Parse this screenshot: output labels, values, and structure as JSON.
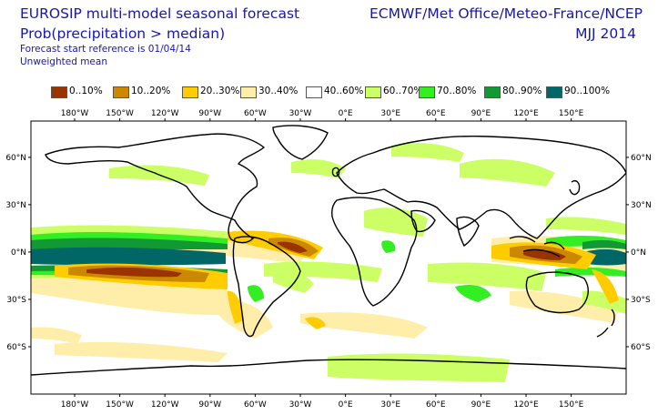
{
  "header": {
    "title": "EUROSIP multi-model seasonal forecast",
    "subtitle": "Prob(precipitation > median)",
    "start_reference": "Forecast start reference is 01/04/14",
    "weighting": "Unweighted mean",
    "centres": "ECMWF/Met Office/Meteo-France/NCEP",
    "season": "MJJ 2014"
  },
  "legend": [
    {
      "label": "0..10%",
      "color": "#993300"
    },
    {
      "label": "10..20%",
      "color": "#cc8800"
    },
    {
      "label": "20..30%",
      "color": "#ffcc00"
    },
    {
      "label": "30..40%",
      "color": "#ffeeaa"
    },
    {
      "label": "40..60%",
      "color": "#ffffff"
    },
    {
      "label": "60..70%",
      "color": "#ccff66"
    },
    {
      "label": "70..80%",
      "color": "#33ee22"
    },
    {
      "label": "80..90%",
      "color": "#119933"
    },
    {
      "label": "90..100%",
      "color": "#006666"
    }
  ],
  "axes": {
    "lon_ticks": [
      "180°W",
      "150°W",
      "120°W",
      "90°W",
      "60°W",
      "30°W",
      "0°E",
      "30°E",
      "60°E",
      "90°E",
      "120°E",
      "150°E"
    ],
    "lat_ticks": [
      "60°N",
      "30°N",
      "0°N",
      "30°S",
      "60°S"
    ]
  }
}
